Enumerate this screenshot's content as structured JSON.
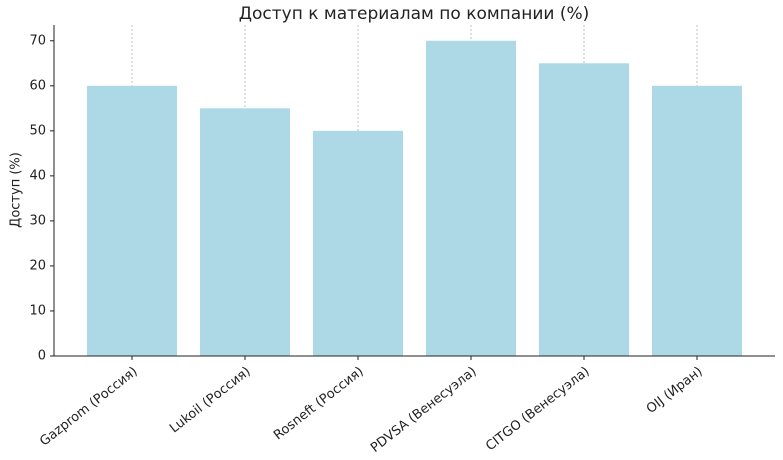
{
  "chart_data": {
    "type": "bar",
    "title": "Доступ к материалам по компании (%)",
    "y_label": "Доступ (%)",
    "categories": [
      "Gazprom (Россия)",
      "Lukoil (Россия)",
      "Rosneft (Россия)",
      "PDVSA (Венесуэла)",
      "CITGO (Венесуэла)",
      "OIJ (Иран)"
    ],
    "values": [
      60,
      55,
      50,
      70,
      65,
      60
    ],
    "color": "#add8e6",
    "ylim": [
      0,
      73.5
    ],
    "yticks": [
      0,
      10,
      20,
      30,
      40,
      50,
      60,
      70
    ],
    "grid": true
  }
}
